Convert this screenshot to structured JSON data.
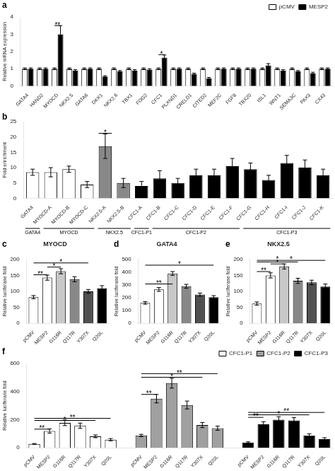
{
  "chart_data": [
    {
      "type": "bar",
      "annotations": [
        {
          "text": "a"
        },
        {
          "text": "**",
          "category": "MYOCD",
          "y": 3.5
        },
        {
          "text": "*",
          "category": "CFC1",
          "y": 1.82
        }
      ],
      "categories": [
        "GATA4",
        "HAND2",
        "MYOCD",
        "NKX2.5",
        "GATA6",
        "DKK1",
        "NKX2.6",
        "TBX1",
        "FOG2",
        "CFC1",
        "PLXND1",
        "CRELD1",
        "CITED2",
        "MEF2C",
        "FGF8",
        "TBX20",
        "ISL1",
        "WNT1",
        "SEMA3C",
        "PAX3",
        "CX43"
      ],
      "series": [
        {
          "name": "pCMV",
          "color": "white",
          "values": [
            1.0,
            1.0,
            1.0,
            1.0,
            1.0,
            1.0,
            1.0,
            1.0,
            1.0,
            1.0,
            1.0,
            1.0,
            1.0,
            1.0,
            1.0,
            1.0,
            1.0,
            1.0,
            1.0,
            1.0,
            1.0
          ],
          "errors": [
            0.05,
            0.05,
            0.05,
            0.05,
            0.05,
            0.05,
            0.05,
            0.05,
            0.05,
            0.05,
            0.05,
            0.05,
            0.05,
            0.05,
            0.05,
            0.05,
            0.05,
            0.05,
            0.05,
            0.05,
            0.05
          ]
        },
        {
          "name": "MESP2",
          "color": "black",
          "values": [
            1.0,
            1.0,
            3.0,
            0.9,
            1.0,
            0.55,
            0.85,
            0.9,
            0.95,
            1.65,
            1.0,
            0.7,
            0.45,
            1.0,
            1.0,
            1.0,
            1.2,
            0.9,
            0.85,
            0.75,
            1.0
          ],
          "errors": [
            0.05,
            0.05,
            0.5,
            0.05,
            0.05,
            0.05,
            0.05,
            0.05,
            0.05,
            0.15,
            0.05,
            0.05,
            0.05,
            0.05,
            0.05,
            0.05,
            0.1,
            0.05,
            0.05,
            0.05,
            0.05
          ]
        }
      ],
      "ylabel": "Relative mRNA expression",
      "ylim": [
        0,
        4
      ],
      "yticks": [
        0,
        1,
        2,
        3,
        4
      ],
      "grid": false,
      "legend": "upper right"
    },
    {
      "type": "bar",
      "annotations": [
        {
          "text": "b"
        },
        {
          "text": "*",
          "from": "NKX2.5-A",
          "to": "NKX2.5-A",
          "y": 21.2
        }
      ],
      "categories": [
        "GATA4",
        "MYOCD-A",
        "MYOCD-B",
        "MYOCD-C",
        "NKX2.5-A",
        "NKX2.5-B",
        "CFC1-A",
        "CFC1-B",
        "CFC1-C",
        "CFC1-D",
        "CFC1-E",
        "CFC1-F",
        "CFC1-G",
        "CFC1-H",
        "CFC1-I",
        "CFC1-J",
        "CFC1-K"
      ],
      "values": [
        8.5,
        8.5,
        9.5,
        4.5,
        17.0,
        5.0,
        4.0,
        6.5,
        5.0,
        7.5,
        7.5,
        10.5,
        9.5,
        6.0,
        11.5,
        10.0,
        7.5
      ],
      "errors": [
        1.0,
        1.5,
        1.0,
        1.0,
        4.0,
        1.5,
        1.5,
        2.5,
        1.5,
        2.0,
        2.0,
        2.5,
        2.0,
        1.5,
        2.5,
        2.5,
        2.0
      ],
      "colors": [
        "white",
        "white",
        "white",
        "white",
        "#888888",
        "#888888",
        "black",
        "black",
        "black",
        "black",
        "black",
        "black",
        "black",
        "black",
        "black",
        "black",
        "black"
      ],
      "groups": [
        {
          "label": "GATA4",
          "from": "GATA4",
          "to": "GATA4"
        },
        {
          "label": "MYOCD",
          "from": "MYOCD-A",
          "to": "MYOCD-C"
        },
        {
          "label": "NKX2.5",
          "from": "NKX2.5-A",
          "to": "NKX2.5-B"
        },
        {
          "label": "CFC1-P1",
          "from": "CFC1-A",
          "to": "CFC1-A"
        },
        {
          "label": "CFC1-P2",
          "from": "CFC1-B",
          "to": "CFC1-F"
        },
        {
          "label": "CFC1-P3",
          "from": "CFC1-G",
          "to": "CFC1-K"
        }
      ],
      "ylabel": "Fold enrichment",
      "ylim": [
        0,
        25
      ],
      "yticks": [
        0,
        5,
        10,
        15,
        20,
        25
      ],
      "grid": false
    },
    {
      "type": "bar",
      "title": "MYOCD",
      "annotations": [
        {
          "text": "c"
        },
        {
          "text": "**",
          "from": "pCMV",
          "to": "MESP2",
          "y": 152
        },
        {
          "text": "*",
          "from": "MESP2",
          "to": "G116R",
          "y": 176
        },
        {
          "text": "*",
          "from": "pCMV",
          "to": "Y307X",
          "y": 189
        }
      ],
      "categories": [
        "pCMV",
        "MESP2",
        "G116R",
        "Q117R",
        "Y307X",
        "Q20L"
      ],
      "values": [
        82,
        143,
        163,
        138,
        100,
        110
      ],
      "errors": [
        5,
        8,
        8,
        8,
        6,
        8
      ],
      "colors": [
        "white",
        "white",
        "#C8C8C8",
        "#888888",
        "#505050",
        "black"
      ],
      "ylabel": "Relative luciferase fold",
      "ylim": [
        0,
        200
      ],
      "yticks": [
        0,
        50,
        100,
        150,
        200
      ],
      "grid": false
    },
    {
      "type": "bar",
      "title": "GATA4",
      "annotations": [
        {
          "text": "d"
        },
        {
          "text": "**",
          "from": "pCMV",
          "to": "G116R",
          "y": 308
        },
        {
          "text": "*",
          "from": "pCMV",
          "to": "Q20L",
          "y": 455
        }
      ],
      "categories": [
        "pCMV",
        "MESP2",
        "G116R",
        "Q117R",
        "Y307X",
        "Q20L"
      ],
      "values": [
        160,
        265,
        390,
        290,
        225,
        205
      ],
      "errors": [
        10,
        15,
        15,
        15,
        12,
        12
      ],
      "colors": [
        "white",
        "white",
        "#C8C8C8",
        "#888888",
        "#505050",
        "black"
      ],
      "ylabel": "Relative luciferase fold",
      "ylim": [
        0,
        500
      ],
      "yticks": [
        0,
        100,
        200,
        300,
        400,
        500
      ],
      "grid": false
    },
    {
      "type": "bar",
      "title": "NKX2.5",
      "annotations": [
        {
          "text": "e"
        },
        {
          "text": "**",
          "from": "pCMV",
          "to": "MESP2",
          "y": 162
        },
        {
          "text": "*",
          "from": "MESP2",
          "to": "G116R",
          "y": 186
        },
        {
          "text": "*",
          "from": "pCMV",
          "to": "Q117R",
          "y": 192
        },
        {
          "text": "*",
          "from": "pCMV",
          "to": "Q20L",
          "y": 197
        }
      ],
      "categories": [
        "pCMV",
        "MESP2",
        "G116R",
        "Q117R",
        "Y307X",
        "Q20L"
      ],
      "values": [
        62,
        150,
        178,
        133,
        128,
        115
      ],
      "errors": [
        5,
        8,
        8,
        8,
        7,
        8
      ],
      "colors": [
        "white",
        "white",
        "#C8C8C8",
        "#888888",
        "#505050",
        "black"
      ],
      "ylabel": "Relative luciferase fold",
      "ylim": [
        0,
        200
      ],
      "yticks": [
        0,
        50,
        100,
        150,
        200
      ],
      "grid": false
    },
    {
      "type": "bar",
      "annotations": [
        {
          "text": "f"
        },
        {
          "text": "**",
          "series": "CFC1-P1",
          "from": "pCMV",
          "to": "MESP2",
          "y": 133
        },
        {
          "text": "*",
          "series": "CFC1-P1",
          "from": "pCMV",
          "to": "Y307X",
          "y": 195
        },
        {
          "text": "**",
          "series": "CFC1-P1",
          "from": "pCMV",
          "to": "Q20L",
          "y": 210
        },
        {
          "text": "**",
          "series": "CFC1-P2",
          "from": "pCMV",
          "to": "MESP2",
          "y": 380
        },
        {
          "text": "*",
          "series": "CFC1-P2",
          "from": "pCMV",
          "to": "Y307X",
          "y": 502
        },
        {
          "text": "**",
          "series": "CFC1-P2",
          "from": "pCMV",
          "to": "Q20L",
          "y": 528
        },
        {
          "text": "**",
          "series": "CFC1-P3",
          "from": "pCMV",
          "to": "MESP2",
          "y": 217
        },
        {
          "text": "*",
          "series": "CFC1-P3",
          "from": "pCMV",
          "to": "Y307X",
          "y": 235
        },
        {
          "text": "**",
          "series": "CFC1-P3",
          "from": "pCMV",
          "to": "Q20L",
          "y": 252
        }
      ],
      "categories": [
        "pCMV",
        "MESP2",
        "G116R",
        "Q117R",
        "Y307X",
        "Q20L",
        "pCMV",
        "MESP2",
        "G116R",
        "Q117R",
        "Y307X",
        "Q20L",
        "pCMV",
        "MESP2",
        "G116R",
        "Q117R",
        "Y307X",
        "Q20L"
      ],
      "series": [
        {
          "name": "CFC1-P1",
          "color": "white",
          "values": [
            28,
            120,
            178,
            158,
            82,
            58,
            null,
            null,
            null,
            null,
            null,
            null,
            null,
            null,
            null,
            null,
            null,
            null
          ],
          "errors": [
            3,
            15,
            20,
            18,
            10,
            8,
            null,
            null,
            null,
            null,
            null,
            null,
            null,
            null,
            null,
            null,
            null,
            null
          ]
        },
        {
          "name": "CFC1-P2",
          "color": "#A0A0A0",
          "values": [
            null,
            null,
            null,
            null,
            null,
            null,
            88,
            350,
            460,
            305,
            162,
            140,
            null,
            null,
            null,
            null,
            null,
            null
          ],
          "errors": [
            null,
            null,
            null,
            null,
            null,
            null,
            8,
            30,
            35,
            28,
            18,
            15,
            null,
            null,
            null,
            null,
            null,
            null
          ]
        },
        {
          "name": "CFC1-P3",
          "color": "black",
          "values": [
            null,
            null,
            null,
            null,
            null,
            null,
            null,
            null,
            null,
            null,
            null,
            null,
            38,
            168,
            200,
            195,
            88,
            62
          ],
          "errors": [
            null,
            null,
            null,
            null,
            null,
            null,
            null,
            null,
            null,
            null,
            null,
            null,
            5,
            18,
            22,
            20,
            12,
            10
          ]
        }
      ],
      "ylabel": "Relative luciferase fold",
      "ylim": [
        0,
        600
      ],
      "yticks": [
        0,
        200,
        400,
        600
      ],
      "grid": false,
      "legend": "upper right"
    }
  ]
}
